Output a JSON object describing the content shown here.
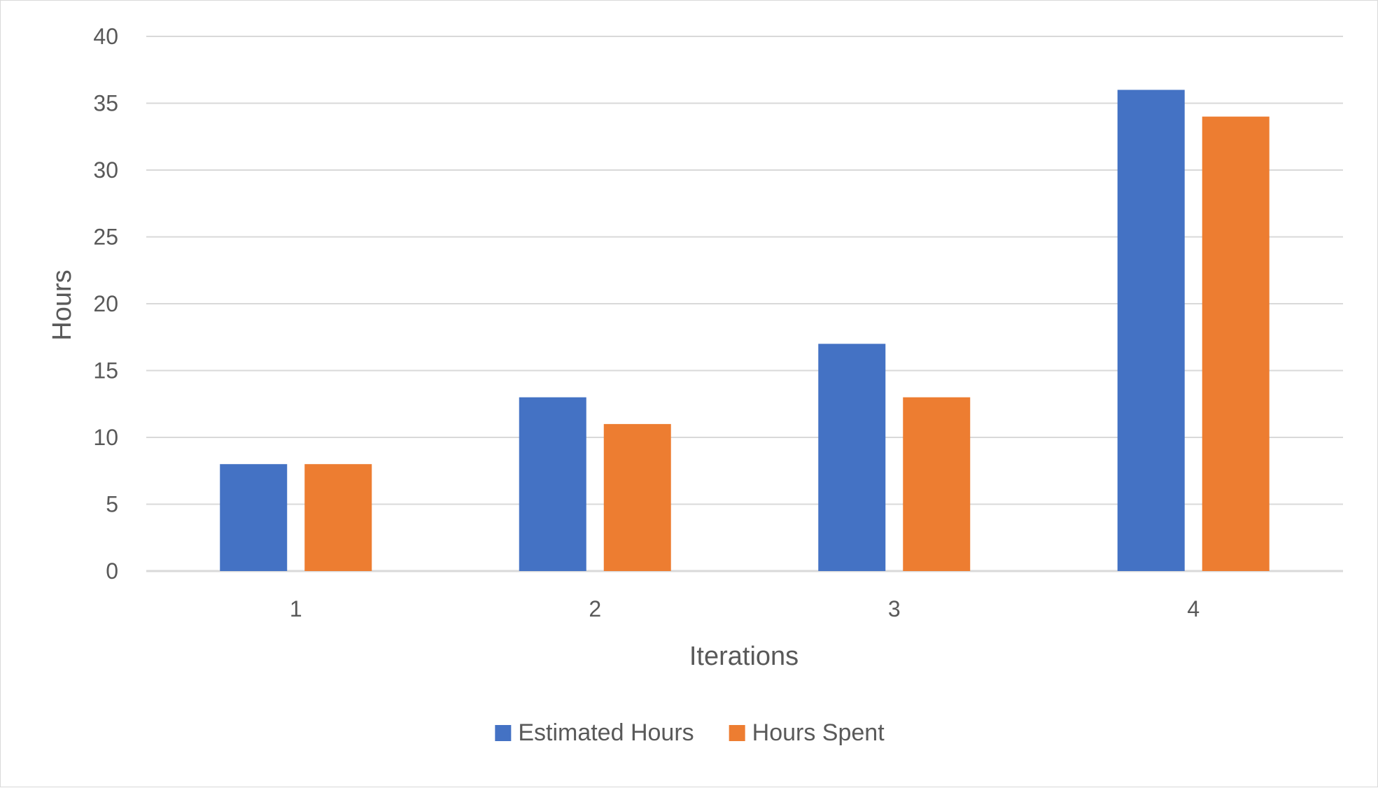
{
  "chart_data": {
    "type": "bar",
    "categories": [
      "1",
      "2",
      "3",
      "4"
    ],
    "series": [
      {
        "name": "Estimated Hours",
        "values": [
          8,
          13,
          17,
          36
        ],
        "color": "#4472C4"
      },
      {
        "name": "Hours Spent",
        "values": [
          8,
          11,
          13,
          34
        ],
        "color": "#ED7D31"
      }
    ],
    "title": "",
    "xlabel": "Iterations",
    "ylabel": "Hours",
    "ylim": [
      0,
      40
    ],
    "yticks": [
      0,
      5,
      10,
      15,
      20,
      25,
      30,
      35,
      40
    ],
    "grid": true,
    "legend_position": "bottom",
    "colors": {
      "gridline": "#d9d9d9",
      "text": "#595959"
    }
  }
}
